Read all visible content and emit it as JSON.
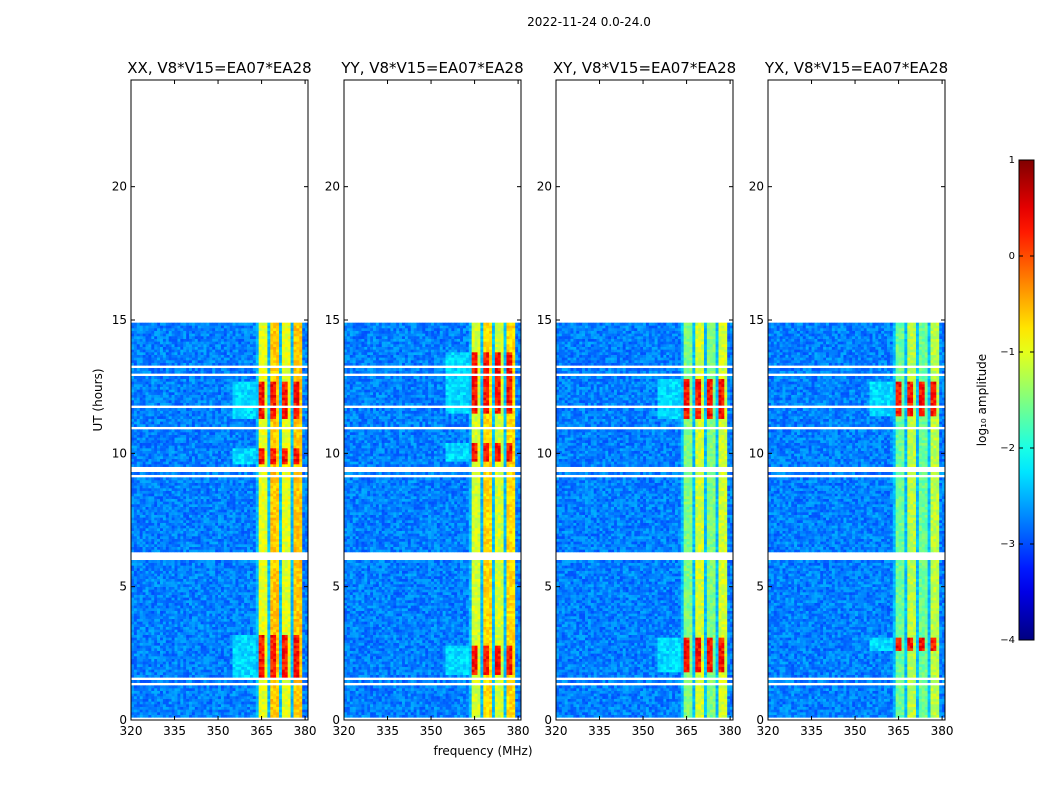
{
  "chart_data": {
    "type": "heatmap",
    "suptitle": "2022-11-24 0.0-24.0",
    "xlabel": "frequency (MHz)",
    "ylabel": "UT (hours)",
    "xlim": [
      320,
      381
    ],
    "ylim": [
      0,
      24
    ],
    "xticks": [
      320,
      335,
      350,
      365,
      380
    ],
    "yticks": [
      0,
      5,
      10,
      15,
      20
    ],
    "data_extent_hours": [
      0.0,
      14.85
    ],
    "rfi_band_mhz": [
      363,
      379
    ],
    "flagged_hours": [
      [
        0.0,
        0.1
      ],
      [
        1.05,
        1.15
      ],
      [
        1.3,
        1.4
      ],
      [
        1.5,
        1.6
      ],
      [
        5.95,
        6.25
      ],
      [
        9.05,
        9.2
      ],
      [
        9.3,
        9.45
      ],
      [
        10.9,
        11.0
      ],
      [
        11.65,
        11.75
      ],
      [
        12.9,
        13.0
      ],
      [
        13.2,
        13.25
      ]
    ],
    "panels": [
      {
        "title": "XX, V8*V15=EA07*EA28",
        "band_level": 0.62,
        "hot_rows": [
          [
            11.3,
            12.7
          ],
          [
            9.6,
            10.2
          ],
          [
            1.6,
            3.2
          ]
        ]
      },
      {
        "title": "YY, V8*V15=EA07*EA28",
        "band_level": 0.6,
        "hot_rows": [
          [
            11.5,
            13.8
          ],
          [
            9.7,
            10.4
          ],
          [
            1.7,
            2.8
          ]
        ]
      },
      {
        "title": "XY, V8*V15=EA07*EA28",
        "band_level": 0.52,
        "hot_rows": [
          [
            11.3,
            12.8
          ],
          [
            1.8,
            3.1
          ]
        ]
      },
      {
        "title": "YX, V8*V15=EA07*EA28",
        "band_level": 0.5,
        "hot_rows": [
          [
            11.4,
            12.7
          ],
          [
            2.6,
            3.1
          ]
        ]
      }
    ],
    "colorbar": {
      "label": "log₁₀ amplitude",
      "min": -4,
      "max": 1,
      "ticks": [
        1,
        0,
        -1,
        -2,
        -3,
        -4
      ],
      "colormap": "jet"
    }
  },
  "colors": {
    "background": "#ffffff",
    "axis": "#000000"
  }
}
